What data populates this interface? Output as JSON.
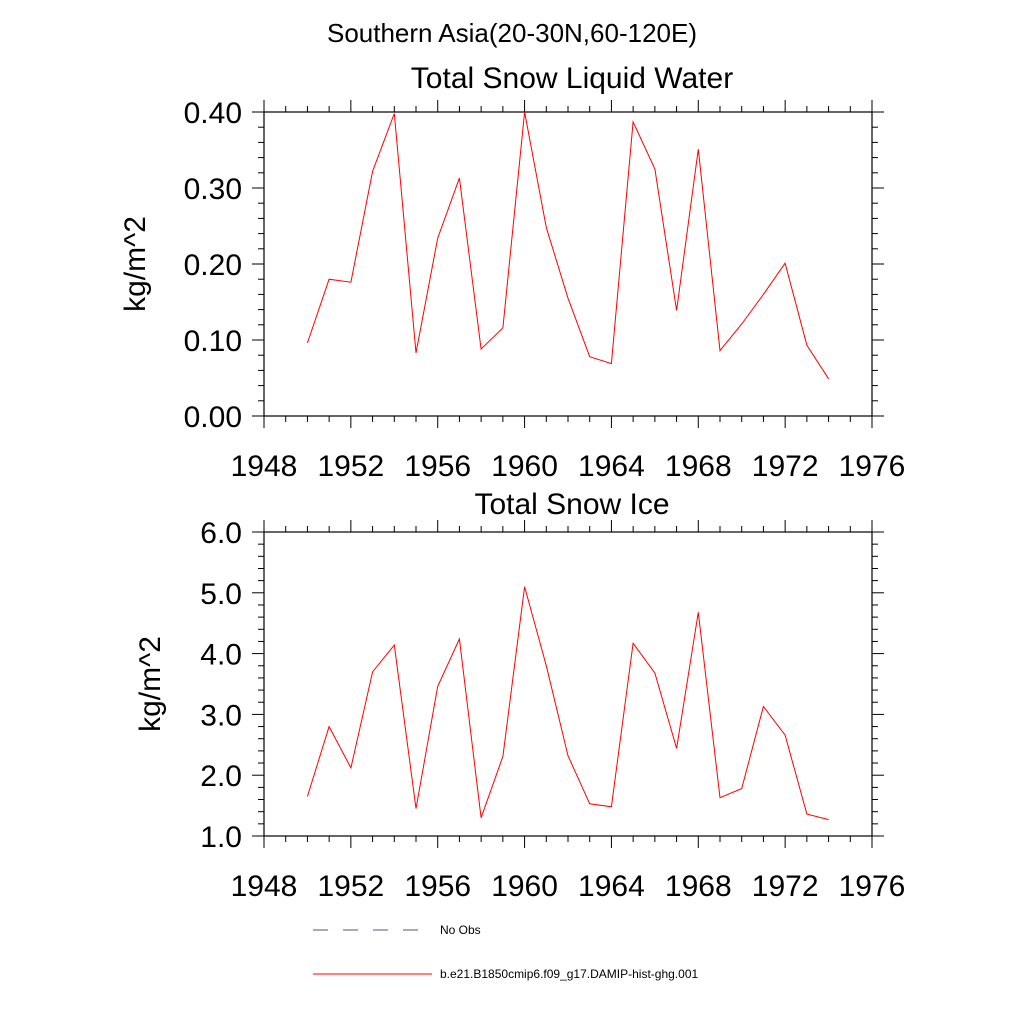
{
  "super_title": "Southern Asia(20-30N,60-120E)",
  "colors": {
    "model": "#ff0000",
    "obs": "#4a5a8a"
  },
  "legend": {
    "obs_label": "No Obs",
    "model_label": "b.e21.B1850cmip6.f09_g17.DAMIP-hist-ghg.001"
  },
  "chart_data": [
    {
      "type": "line",
      "title": "Total Snow Liquid Water",
      "xlabel": "",
      "ylabel": "kg/m^2",
      "xlim": [
        1948,
        1976
      ],
      "ylim": [
        0.0,
        0.4
      ],
      "xticks": [
        1948,
        1952,
        1956,
        1960,
        1964,
        1968,
        1972,
        1976
      ],
      "yticks": [
        0.0,
        0.1,
        0.2,
        0.3,
        0.4
      ],
      "ytick_labels": [
        "0.00",
        "0.10",
        "0.20",
        "0.30",
        "0.40"
      ],
      "x": [
        1950,
        1951,
        1952,
        1953,
        1954,
        1955,
        1956,
        1957,
        1958,
        1959,
        1960,
        1961,
        1962,
        1963,
        1964,
        1965,
        1966,
        1967,
        1968,
        1969,
        1970,
        1971,
        1972,
        1973,
        1974
      ],
      "series": [
        {
          "name": "b.e21.B1850cmip6.f09_g17.DAMIP-hist-ghg.001",
          "values": [
            0.096,
            0.18,
            0.176,
            0.322,
            0.398,
            0.083,
            0.234,
            0.313,
            0.088,
            0.116,
            0.4,
            0.248,
            0.155,
            0.078,
            0.069,
            0.387,
            0.325,
            0.139,
            0.351,
            0.086,
            0.121,
            0.16,
            0.201,
            0.093,
            0.049
          ]
        }
      ]
    },
    {
      "type": "line",
      "title": "Total Snow Ice",
      "xlabel": "",
      "ylabel": "kg/m^2",
      "xlim": [
        1948,
        1976
      ],
      "ylim": [
        1.0,
        6.0
      ],
      "xticks": [
        1948,
        1952,
        1956,
        1960,
        1964,
        1968,
        1972,
        1976
      ],
      "yticks": [
        1.0,
        2.0,
        3.0,
        4.0,
        5.0,
        6.0
      ],
      "ytick_labels": [
        "1.0",
        "2.0",
        "3.0",
        "4.0",
        "5.0",
        "6.0"
      ],
      "x": [
        1950,
        1951,
        1952,
        1953,
        1954,
        1955,
        1956,
        1957,
        1958,
        1959,
        1960,
        1961,
        1962,
        1963,
        1964,
        1965,
        1966,
        1967,
        1968,
        1969,
        1970,
        1971,
        1972,
        1973,
        1974
      ],
      "series": [
        {
          "name": "b.e21.B1850cmip6.f09_g17.DAMIP-hist-ghg.001",
          "values": [
            1.65,
            2.8,
            2.12,
            3.7,
            4.14,
            1.45,
            3.46,
            4.24,
            1.3,
            2.31,
            5.1,
            3.8,
            2.32,
            1.53,
            1.48,
            4.17,
            3.68,
            2.44,
            4.68,
            1.63,
            1.78,
            3.13,
            2.66,
            1.36,
            1.27
          ]
        }
      ]
    }
  ]
}
